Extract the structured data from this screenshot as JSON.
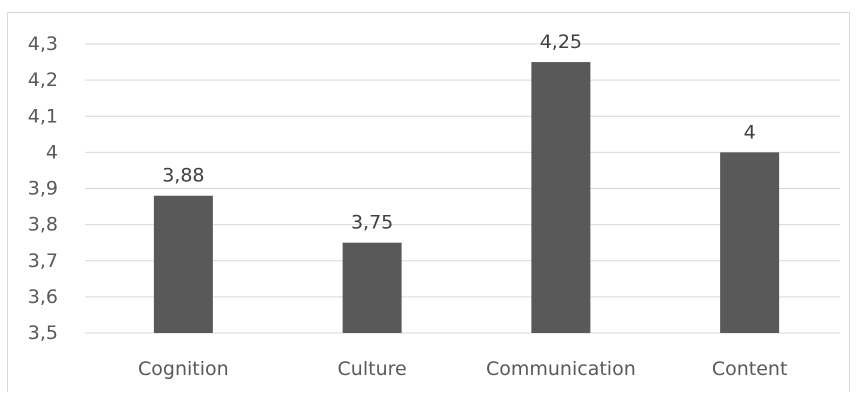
{
  "chart_data": {
    "type": "bar",
    "categories": [
      "Cognition",
      "Culture",
      "Communication",
      "Content"
    ],
    "values": [
      3.88,
      3.75,
      4.25,
      4
    ],
    "data_labels": [
      "3,88",
      "3,75",
      "4,25",
      "4"
    ],
    "ylim": [
      3.5,
      4.3
    ],
    "yticks": [
      3.5,
      3.6,
      3.7,
      3.8,
      3.9,
      4,
      4.1,
      4.2,
      4.3
    ],
    "ytick_labels": [
      "3,5",
      "3,6",
      "3,7",
      "3,8",
      "3,9",
      "4",
      "4,1",
      "4,2",
      "4,3"
    ],
    "title": "",
    "xlabel": "",
    "ylabel": "",
    "grid": true,
    "legend": "none",
    "colors": {
      "bar": "#595959",
      "grid": "#d9d9d9",
      "text": "#595959",
      "frame": "#d9d9d9"
    }
  }
}
